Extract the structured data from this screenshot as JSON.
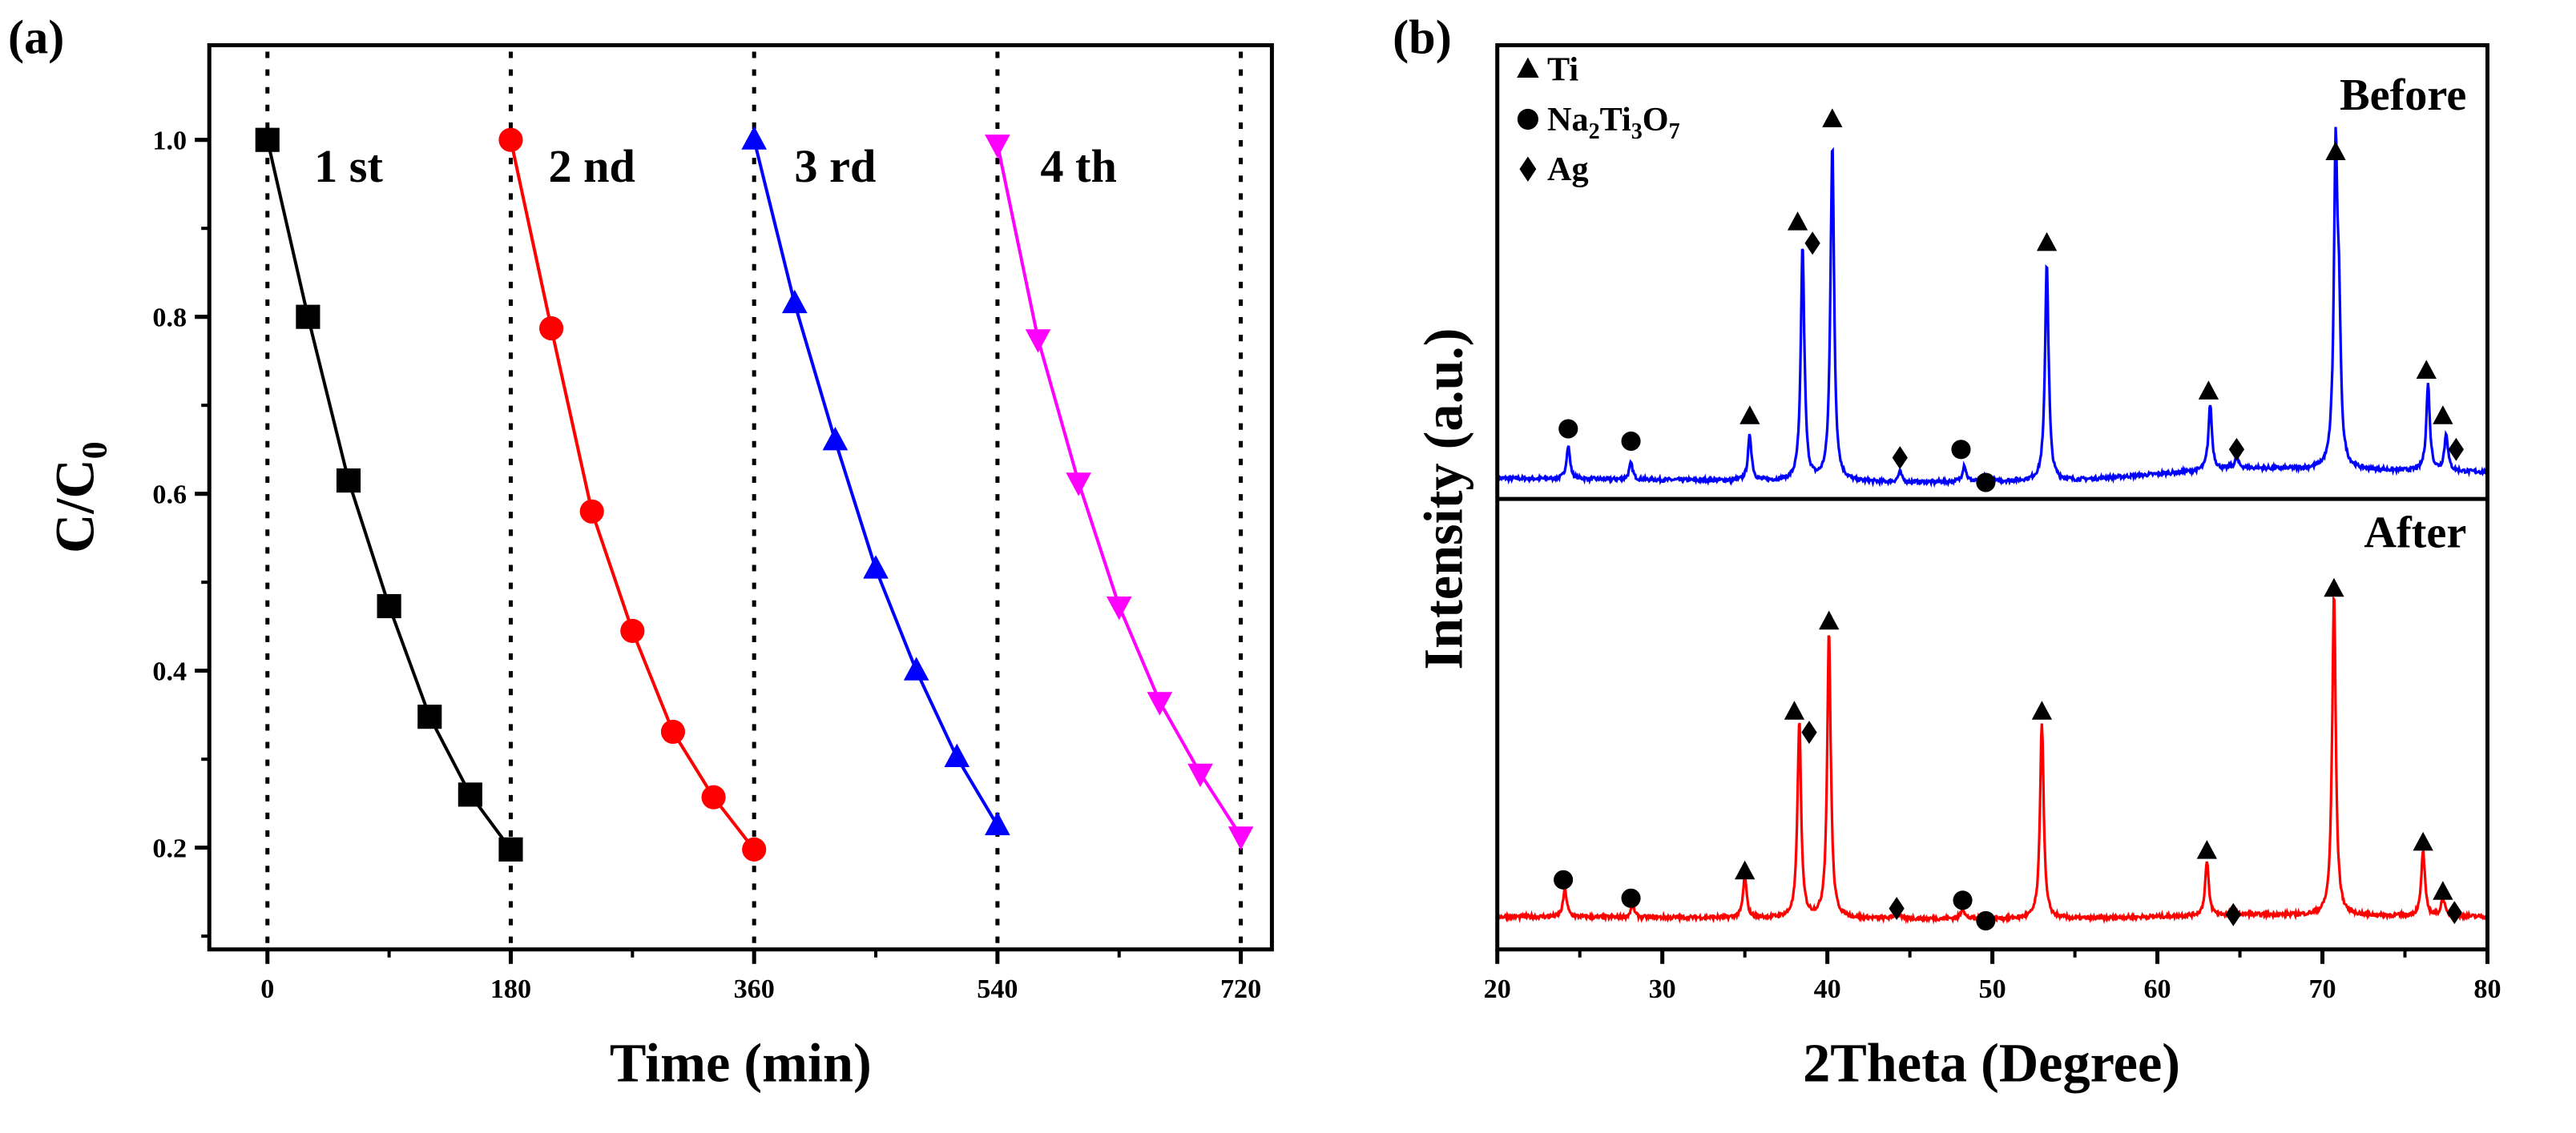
{
  "chart_data": [
    {
      "type": "line",
      "panel_label": "(a)",
      "xlabel": "Time (min)",
      "ylabel_main": "C/C",
      "ylabel_sub": "0",
      "xlim": [
        -43,
        743
      ],
      "ylim": [
        0.085,
        1.107
      ],
      "xticks": [
        0,
        180,
        360,
        540,
        720
      ],
      "xticks_minor": [
        90,
        270,
        450,
        630
      ],
      "yticks": [
        0.2,
        0.4,
        0.6,
        0.8,
        1.0
      ],
      "yticks_minor": [
        0.1,
        0.3,
        0.5,
        0.7,
        0.9
      ],
      "ytick_labels": [
        "0.2",
        "0.4",
        "0.6",
        "0.8",
        "1.0"
      ],
      "xtick_labels": [
        "0",
        "180",
        "360",
        "540",
        "720"
      ],
      "cycle_boundaries": [
        0,
        180,
        360,
        540,
        720
      ],
      "series": [
        {
          "name": "1 st",
          "color": "#000000",
          "marker": "square",
          "label_x": 60,
          "x": [
            0,
            30,
            60,
            90,
            120,
            150,
            180
          ],
          "y": [
            1.0,
            0.8,
            0.615,
            0.473,
            0.348,
            0.26,
            0.198
          ]
        },
        {
          "name": "2 nd",
          "color": "#ff0000",
          "marker": "circle",
          "label_x": 240,
          "x": [
            180,
            210,
            240,
            270,
            300,
            330,
            360
          ],
          "y": [
            1.0,
            0.787,
            0.58,
            0.445,
            0.331,
            0.257,
            0.198
          ]
        },
        {
          "name": "3 rd",
          "color": "#0000ff",
          "marker": "triangle-up",
          "label_x": 420,
          "x": [
            360,
            390,
            420,
            450,
            480,
            510,
            540
          ],
          "y": [
            1.0,
            0.815,
            0.66,
            0.515,
            0.4,
            0.302,
            0.225
          ]
        },
        {
          "name": "4 th",
          "color": "#ff00ff",
          "marker": "triangle-down",
          "label_x": 600,
          "x": [
            540,
            570,
            600,
            630,
            660,
            690,
            720
          ],
          "y": [
            0.995,
            0.775,
            0.613,
            0.473,
            0.365,
            0.284,
            0.213
          ]
        }
      ]
    },
    {
      "type": "line",
      "panel_label": "(b)",
      "xlabel": "2Theta (Degree)",
      "ylabel": "Intensity (a.u.)",
      "xlim": [
        20,
        80
      ],
      "xticks": [
        20,
        30,
        40,
        50,
        60,
        70,
        80
      ],
      "xtick_labels": [
        "20",
        "30",
        "40",
        "50",
        "60",
        "70",
        "80"
      ],
      "ylim_each_panel": [
        0,
        110
      ],
      "legend": [
        {
          "symbol": "triangle",
          "parts": [
            "Ti"
          ]
        },
        {
          "symbol": "circle",
          "parts": [
            "Na",
            "2",
            "Ti",
            "3",
            "O",
            "7"
          ]
        },
        {
          "symbol": "diamond",
          "parts": [
            "Ag"
          ]
        }
      ],
      "panels": [
        {
          "name": "Before",
          "color": "#0000ff",
          "baseline": [
            [
              20,
              5
            ],
            [
              45,
              4
            ],
            [
              55,
              4.5
            ],
            [
              65,
              7.5
            ],
            [
              80,
              6.5
            ]
          ],
          "peaks": [
            [
              24.3,
              8
            ],
            [
              28.1,
              4
            ],
            [
              35.3,
              11
            ],
            [
              38.5,
              57
            ],
            [
              40.3,
              82
            ],
            [
              44.4,
              2.5
            ],
            [
              48.3,
              4
            ],
            [
              49.6,
              1.5
            ],
            [
              53.3,
              53
            ],
            [
              63.2,
              16
            ],
            [
              64.8,
              2.5
            ],
            [
              70.8,
              74
            ],
            [
              71.0,
              30
            ],
            [
              76.4,
              21
            ],
            [
              77.5,
              9
            ]
          ],
          "markers": [
            {
              "phase": "circle",
              "x": 24.3,
              "y": 17
            },
            {
              "phase": "circle",
              "x": 28.1,
              "y": 14
            },
            {
              "phase": "triangle",
              "x": 35.3,
              "y": 20
            },
            {
              "phase": "triangle",
              "x": 38.2,
              "y": 67
            },
            {
              "phase": "diamond",
              "x": 39.1,
              "y": 62
            },
            {
              "phase": "triangle",
              "x": 40.3,
              "y": 92
            },
            {
              "phase": "diamond",
              "x": 44.4,
              "y": 10
            },
            {
              "phase": "circle",
              "x": 48.1,
              "y": 12
            },
            {
              "phase": "circle",
              "x": 49.6,
              "y": 4
            },
            {
              "phase": "triangle",
              "x": 53.3,
              "y": 62
            },
            {
              "phase": "triangle",
              "x": 63.1,
              "y": 26
            },
            {
              "phase": "diamond",
              "x": 64.8,
              "y": 12
            },
            {
              "phase": "triangle",
              "x": 70.8,
              "y": 84
            },
            {
              "phase": "triangle",
              "x": 76.3,
              "y": 31
            },
            {
              "phase": "triangle",
              "x": 77.3,
              "y": 20
            },
            {
              "phase": "diamond",
              "x": 78.1,
              "y": 12
            }
          ]
        },
        {
          "name": "After",
          "color": "#ff0000",
          "baseline": [
            [
              20,
              8
            ],
            [
              45,
              7.5
            ],
            [
              55,
              7.5
            ],
            [
              65,
              8.5
            ],
            [
              80,
              8
            ]
          ],
          "peaks": [
            [
              24.1,
              7
            ],
            [
              28.2,
              3
            ],
            [
              35.0,
              10
            ],
            [
              38.3,
              48
            ],
            [
              40.1,
              70
            ],
            [
              44.2,
              2
            ],
            [
              48.2,
              2.5
            ],
            [
              53.0,
              48
            ],
            [
              63.0,
              13
            ],
            [
              64.6,
              1
            ],
            [
              70.7,
              79
            ],
            [
              76.1,
              16
            ],
            [
              77.3,
              4.5
            ]
          ],
          "markers": [
            {
              "phase": "circle",
              "x": 24.0,
              "y": 17
            },
            {
              "phase": "circle",
              "x": 28.1,
              "y": 12.5
            },
            {
              "phase": "triangle",
              "x": 35.0,
              "y": 19
            },
            {
              "phase": "triangle",
              "x": 38.0,
              "y": 58
            },
            {
              "phase": "diamond",
              "x": 38.9,
              "y": 53
            },
            {
              "phase": "triangle",
              "x": 40.1,
              "y": 80
            },
            {
              "phase": "diamond",
              "x": 44.2,
              "y": 10
            },
            {
              "phase": "circle",
              "x": 48.2,
              "y": 12
            },
            {
              "phase": "circle",
              "x": 49.6,
              "y": 7
            },
            {
              "phase": "triangle",
              "x": 53.0,
              "y": 58
            },
            {
              "phase": "triangle",
              "x": 63.0,
              "y": 24
            },
            {
              "phase": "diamond",
              "x": 64.6,
              "y": 8.5
            },
            {
              "phase": "triangle",
              "x": 70.7,
              "y": 88
            },
            {
              "phase": "triangle",
              "x": 76.1,
              "y": 26
            },
            {
              "phase": "triangle",
              "x": 77.3,
              "y": 14
            },
            {
              "phase": "diamond",
              "x": 78.0,
              "y": 9
            }
          ]
        }
      ]
    }
  ]
}
